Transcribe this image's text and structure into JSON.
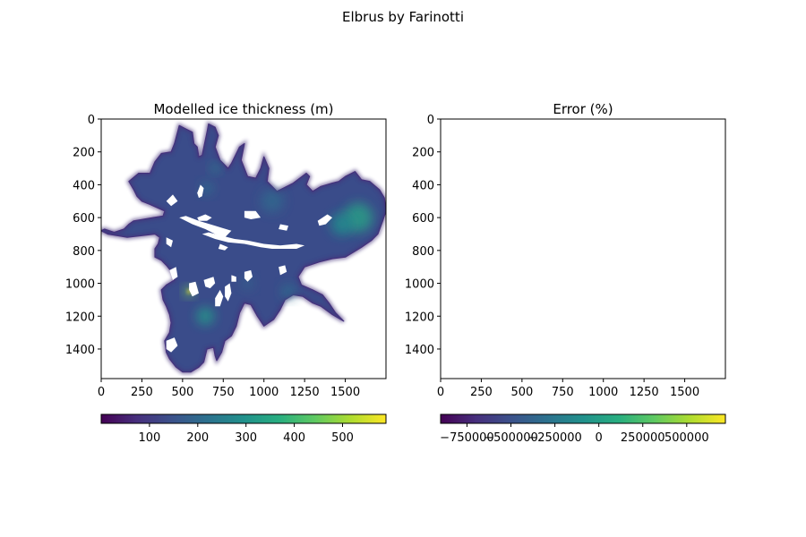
{
  "figure": {
    "suptitle": "Elbrus by Farinotti"
  },
  "chart_data": [
    {
      "type": "heatmap",
      "title": "Modelled ice thickness (m)",
      "xlabel": "",
      "ylabel": "",
      "xlim": [
        0,
        1750
      ],
      "ylim": [
        1580,
        0
      ],
      "x_ticks": [
        0,
        250,
        500,
        750,
        1000,
        1250,
        1500
      ],
      "y_ticks": [
        0,
        200,
        400,
        600,
        800,
        1000,
        1200,
        1400
      ],
      "colormap": "viridis",
      "colorbar": {
        "orientation": "horizontal",
        "range": [
          0,
          590
        ],
        "ticks": [
          100,
          200,
          300,
          400,
          500
        ]
      },
      "glacier_outline": [
        [
          170,
          380
        ],
        [
          230,
          330
        ],
        [
          300,
          330
        ],
        [
          330,
          260
        ],
        [
          370,
          210
        ],
        [
          430,
          200
        ],
        [
          450,
          150
        ],
        [
          480,
          40
        ],
        [
          520,
          60
        ],
        [
          560,
          80
        ],
        [
          570,
          150
        ],
        [
          590,
          170
        ],
        [
          600,
          230
        ],
        [
          620,
          220
        ],
        [
          650,
          80
        ],
        [
          660,
          30
        ],
        [
          700,
          50
        ],
        [
          720,
          100
        ],
        [
          700,
          170
        ],
        [
          730,
          250
        ],
        [
          780,
          300
        ],
        [
          800,
          270
        ],
        [
          850,
          170
        ],
        [
          880,
          150
        ],
        [
          860,
          250
        ],
        [
          900,
          350
        ],
        [
          950,
          360
        ],
        [
          980,
          300
        ],
        [
          1000,
          230
        ],
        [
          1030,
          300
        ],
        [
          1020,
          380
        ],
        [
          1080,
          440
        ],
        [
          1180,
          390
        ],
        [
          1260,
          330
        ],
        [
          1280,
          350
        ],
        [
          1260,
          400
        ],
        [
          1300,
          440
        ],
        [
          1350,
          410
        ],
        [
          1420,
          390
        ],
        [
          1460,
          380
        ],
        [
          1500,
          350
        ],
        [
          1560,
          320
        ],
        [
          1600,
          370
        ],
        [
          1650,
          380
        ],
        [
          1710,
          430
        ],
        [
          1740,
          480
        ],
        [
          1750,
          560
        ],
        [
          1730,
          620
        ],
        [
          1700,
          700
        ],
        [
          1660,
          740
        ],
        [
          1600,
          780
        ],
        [
          1550,
          810
        ],
        [
          1500,
          840
        ],
        [
          1420,
          850
        ],
        [
          1340,
          870
        ],
        [
          1250,
          900
        ],
        [
          1210,
          960
        ],
        [
          1230,
          1010
        ],
        [
          1300,
          1040
        ],
        [
          1360,
          1070
        ],
        [
          1400,
          1120
        ],
        [
          1440,
          1180
        ],
        [
          1490,
          1230
        ],
        [
          1420,
          1190
        ],
        [
          1350,
          1140
        ],
        [
          1300,
          1120
        ],
        [
          1240,
          1080
        ],
        [
          1180,
          1070
        ],
        [
          1130,
          1100
        ],
        [
          1100,
          1160
        ],
        [
          1060,
          1220
        ],
        [
          1000,
          1260
        ],
        [
          960,
          1200
        ],
        [
          920,
          1130
        ],
        [
          880,
          1120
        ],
        [
          850,
          1180
        ],
        [
          830,
          1260
        ],
        [
          800,
          1320
        ],
        [
          760,
          1350
        ],
        [
          740,
          1420
        ],
        [
          710,
          1470
        ],
        [
          700,
          1440
        ],
        [
          690,
          1390
        ],
        [
          650,
          1400
        ],
        [
          630,
          1480
        ],
        [
          600,
          1510
        ],
        [
          550,
          1540
        ],
        [
          500,
          1540
        ],
        [
          460,
          1510
        ],
        [
          420,
          1460
        ],
        [
          400,
          1420
        ],
        [
          390,
          1350
        ],
        [
          420,
          1300
        ],
        [
          430,
          1240
        ],
        [
          420,
          1190
        ],
        [
          400,
          1140
        ],
        [
          380,
          1100
        ],
        [
          370,
          1040
        ],
        [
          400,
          1010
        ],
        [
          450,
          980
        ],
        [
          440,
          940
        ],
        [
          400,
          890
        ],
        [
          370,
          860
        ],
        [
          330,
          840
        ],
        [
          330,
          790
        ],
        [
          350,
          760
        ],
        [
          360,
          720
        ],
        [
          330,
          700
        ],
        [
          250,
          710
        ],
        [
          160,
          720
        ],
        [
          40,
          700
        ],
        [
          0,
          680
        ],
        [
          20,
          670
        ],
        [
          80,
          690
        ],
        [
          140,
          670
        ],
        [
          170,
          640
        ],
        [
          200,
          620
        ],
        [
          260,
          610
        ],
        [
          320,
          600
        ],
        [
          380,
          590
        ],
        [
          390,
          560
        ],
        [
          300,
          520
        ],
        [
          250,
          500
        ],
        [
          220,
          470
        ],
        [
          200,
          430
        ],
        [
          170,
          380
        ]
      ],
      "gap_features": [
        [
          [
            480,
            600
          ],
          [
            560,
            640
          ],
          [
            640,
            670
          ],
          [
            700,
            700
          ],
          [
            760,
            720
          ],
          [
            800,
            680
          ],
          [
            700,
            650
          ],
          [
            600,
            620
          ],
          [
            520,
            590
          ],
          [
            480,
            600
          ]
        ],
        [
          [
            620,
            700
          ],
          [
            700,
            730
          ],
          [
            780,
            750
          ],
          [
            880,
            760
          ],
          [
            980,
            780
          ],
          [
            1050,
            790
          ],
          [
            1130,
            790
          ],
          [
            1200,
            790
          ],
          [
            1250,
            770
          ],
          [
            1200,
            760
          ],
          [
            1100,
            770
          ],
          [
            1000,
            760
          ],
          [
            900,
            740
          ],
          [
            820,
            730
          ],
          [
            740,
            710
          ],
          [
            660,
            690
          ],
          [
            620,
            700
          ]
        ],
        [
          [
            730,
            760
          ],
          [
            780,
            780
          ],
          [
            760,
            800
          ],
          [
            720,
            790
          ],
          [
            730,
            760
          ]
        ],
        [
          [
            590,
            600
          ],
          [
            640,
            580
          ],
          [
            680,
            600
          ],
          [
            650,
            620
          ],
          [
            600,
            620
          ],
          [
            590,
            600
          ]
        ],
        [
          [
            590,
            450
          ],
          [
            610,
            400
          ],
          [
            630,
            420
          ],
          [
            620,
            470
          ],
          [
            600,
            480
          ],
          [
            590,
            450
          ]
        ],
        [
          [
            880,
            560
          ],
          [
            950,
            560
          ],
          [
            980,
            600
          ],
          [
            920,
            610
          ],
          [
            880,
            600
          ],
          [
            880,
            560
          ]
        ],
        [
          [
            400,
            500
          ],
          [
            440,
            460
          ],
          [
            470,
            500
          ],
          [
            430,
            530
          ],
          [
            400,
            500
          ]
        ],
        [
          [
            400,
            720
          ],
          [
            440,
            740
          ],
          [
            430,
            780
          ],
          [
            400,
            760
          ],
          [
            400,
            720
          ]
        ],
        [
          [
            1100,
            640
          ],
          [
            1150,
            650
          ],
          [
            1140,
            680
          ],
          [
            1090,
            670
          ],
          [
            1100,
            640
          ]
        ],
        [
          [
            1330,
            620
          ],
          [
            1390,
            580
          ],
          [
            1420,
            600
          ],
          [
            1380,
            640
          ],
          [
            1340,
            650
          ],
          [
            1330,
            620
          ]
        ],
        [
          [
            540,
            1000
          ],
          [
            580,
            990
          ],
          [
            600,
            1060
          ],
          [
            560,
            1080
          ],
          [
            540,
            1040
          ],
          [
            540,
            1000
          ]
        ],
        [
          [
            630,
            980
          ],
          [
            690,
            960
          ],
          [
            700,
            1000
          ],
          [
            670,
            1030
          ],
          [
            640,
            1020
          ],
          [
            630,
            980
          ]
        ],
        [
          [
            700,
            1090
          ],
          [
            730,
            1040
          ],
          [
            750,
            1080
          ],
          [
            730,
            1140
          ],
          [
            700,
            1140
          ],
          [
            700,
            1090
          ]
        ],
        [
          [
            420,
            920
          ],
          [
            460,
            900
          ],
          [
            470,
            960
          ],
          [
            440,
            980
          ],
          [
            420,
            920
          ]
        ],
        [
          [
            400,
            1350
          ],
          [
            450,
            1330
          ],
          [
            470,
            1380
          ],
          [
            430,
            1420
          ],
          [
            400,
            1400
          ],
          [
            400,
            1350
          ]
        ],
        [
          [
            760,
            1020
          ],
          [
            790,
            1000
          ],
          [
            800,
            1060
          ],
          [
            780,
            1110
          ],
          [
            760,
            1080
          ],
          [
            760,
            1020
          ]
        ],
        [
          [
            800,
            950
          ],
          [
            830,
            960
          ],
          [
            830,
            990
          ],
          [
            800,
            990
          ],
          [
            800,
            950
          ]
        ],
        [
          [
            880,
            930
          ],
          [
            920,
            920
          ],
          [
            930,
            960
          ],
          [
            900,
            990
          ],
          [
            880,
            970
          ],
          [
            880,
            930
          ]
        ],
        [
          [
            1090,
            900
          ],
          [
            1130,
            890
          ],
          [
            1140,
            930
          ],
          [
            1100,
            950
          ],
          [
            1090,
            900
          ]
        ]
      ],
      "hotspots": [
        {
          "x": 1580,
          "y": 600,
          "r": 90,
          "color": "#2a9c86"
        },
        {
          "x": 1480,
          "y": 640,
          "r": 70,
          "color": "#238a8d"
        },
        {
          "x": 640,
          "y": 1200,
          "r": 55,
          "color": "#27968a"
        },
        {
          "x": 540,
          "y": 1050,
          "r": 30,
          "color": "#7ad151"
        },
        {
          "x": 540,
          "y": 1050,
          "r": 12,
          "color": "#fde725"
        },
        {
          "x": 650,
          "y": 420,
          "r": 40,
          "color": "#2f6c8e"
        },
        {
          "x": 1050,
          "y": 500,
          "r": 70,
          "color": "#31688e"
        },
        {
          "x": 1150,
          "y": 1050,
          "r": 45,
          "color": "#2f6c8e"
        },
        {
          "x": 700,
          "y": 300,
          "r": 30,
          "color": "#2c7e8e"
        },
        {
          "x": 900,
          "y": 1000,
          "r": 40,
          "color": "#35608d"
        }
      ]
    },
    {
      "type": "heatmap",
      "title": "Error (%)",
      "xlabel": "",
      "ylabel": "",
      "xlim": [
        0,
        1750
      ],
      "ylim": [
        1580,
        0
      ],
      "x_ticks": [
        0,
        250,
        500,
        750,
        1000,
        1250,
        1500
      ],
      "y_ticks": [
        0,
        200,
        400,
        600,
        800,
        1000,
        1200,
        1400
      ],
      "colormap": "viridis",
      "colorbar": {
        "orientation": "horizontal",
        "range": [
          -900000,
          720000
        ],
        "ticks": [
          -750000,
          -500000,
          -250000,
          0,
          250000,
          500000
        ]
      }
    }
  ]
}
